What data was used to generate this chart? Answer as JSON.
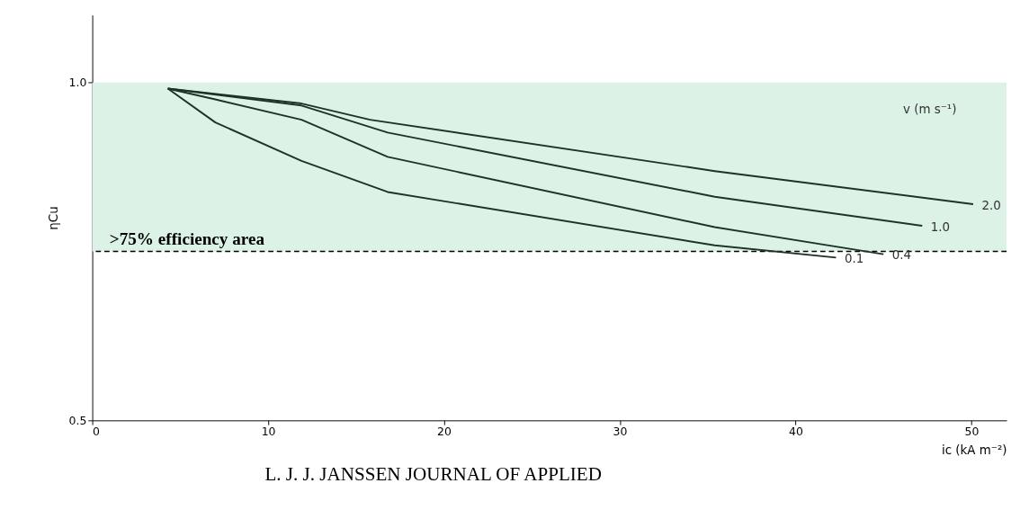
{
  "chart_data": {
    "type": "line",
    "xlabel": "ic (kA m⁻²)",
    "ylabel": "ηCu",
    "legend_title": "v (m s⁻¹)",
    "xlim": [
      0,
      52
    ],
    "xticks": [
      0,
      10,
      20,
      30,
      40,
      50
    ],
    "ylim": [
      0.5,
      1.1
    ],
    "yticks": [
      0.5,
      {
        "value": 1.0,
        "label": "1.0"
      }
    ],
    "grid": false,
    "line_style": "solid",
    "marker": "none",
    "series": [
      {
        "name": "2.0",
        "color": "#1e3326",
        "x": [
          4.3,
          11.9,
          15.8,
          35.4,
          50.1
        ],
        "values": [
          0.991,
          0.969,
          0.945,
          0.869,
          0.82
        ]
      },
      {
        "name": "1.0",
        "color": "#1e3326",
        "x": [
          4.3,
          11.9,
          16.8,
          35.4,
          47.2
        ],
        "values": [
          0.991,
          0.966,
          0.926,
          0.831,
          0.788
        ]
      },
      {
        "name": "0.4",
        "color": "#1e3326",
        "x": [
          4.3,
          7.0,
          11.9,
          16.8,
          35.4,
          45.0
        ],
        "values": [
          0.991,
          0.975,
          0.945,
          0.89,
          0.786,
          0.746
        ]
      },
      {
        "name": "0.1",
        "color": "#1e3326",
        "x": [
          4.3,
          7.0,
          11.9,
          16.8,
          35.4,
          42.3
        ],
        "values": [
          0.991,
          0.941,
          0.884,
          0.838,
          0.759,
          0.741
        ]
      }
    ],
    "bands": [
      {
        "axis": "y",
        "from": 0.75,
        "to": 1.0,
        "label": ">75%  efficiency area",
        "color": "#dcf2e7"
      }
    ],
    "ref_lines": [
      {
        "axis": "y",
        "value": 0.75,
        "color": "#000000",
        "line_style": "dashed"
      }
    ],
    "annotations": [
      "L. J. J. JANSSEN JOURNAL OF APPLIED"
    ]
  }
}
